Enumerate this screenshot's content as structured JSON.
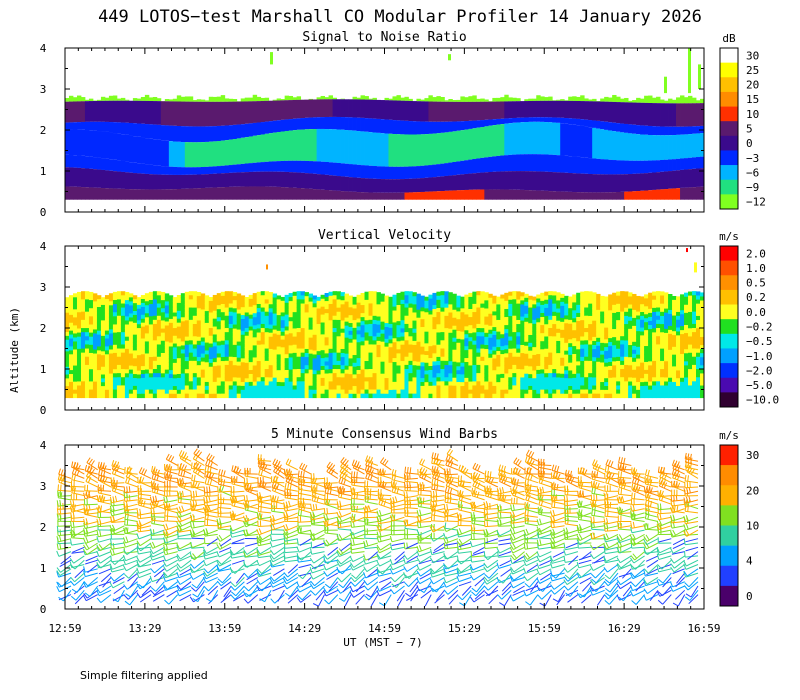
{
  "chart_data": {
    "type": "heatmap",
    "title": "449 LOTOS−test Marshall CO Modular Profiler 14 January 2026",
    "xlabel": "UT  (MST − 7)",
    "ylabel": "Altitude (km)",
    "x_ticks": [
      "12:59",
      "13:29",
      "13:59",
      "14:29",
      "14:59",
      "15:29",
      "15:59",
      "16:29",
      "16:59"
    ],
    "y_ticks": [
      "0",
      "1",
      "2",
      "3",
      "4"
    ],
    "ylim": [
      0,
      4
    ],
    "footnote": "Simple filtering applied",
    "panels": [
      {
        "name": "snr",
        "title": "Signal to Noise Ratio",
        "unit": "dB",
        "colorbar": {
          "labels": [
            "30",
            "25",
            "20",
            "15",
            "10",
            "5",
            "0",
            "−3",
            "−6",
            "−9",
            "−12"
          ],
          "colors": [
            "#ffffff",
            "#ffff00",
            "#ffc000",
            "#ff8c00",
            "#ff3000",
            "#5a1a6e",
            "#3a0a8c",
            "#0028ff",
            "#00b4ff",
            "#20e080",
            "#80ff20"
          ]
        },
        "profile_top_km": 2.8,
        "profile_bottom_km": 0.3,
        "layers": [
          {
            "range_km": [
              2.7,
              2.85
            ],
            "class": "−9 to −12"
          },
          {
            "range_km": [
              2.1,
              2.7
            ],
            "class": "0 to 5"
          },
          {
            "range_km": [
              1.2,
              2.1
            ],
            "class": "−3 to −9"
          },
          {
            "range_km": [
              0.5,
              1.2
            ],
            "class": "0 to 5"
          },
          {
            "range_km": [
              0.3,
              0.5
            ],
            "class": "5 to 15"
          }
        ]
      },
      {
        "name": "vertical-velocity",
        "title": "Vertical Velocity",
        "unit": "m/s",
        "colorbar": {
          "labels": [
            "2.0",
            "1.0",
            "0.5",
            "0.2",
            "0.0",
            "−0.2",
            "−0.5",
            "−1.0",
            "−2.0",
            "−5.0",
            "−10.0"
          ],
          "colors": [
            "#ff0000",
            "#ff5000",
            "#ff9000",
            "#ffc000",
            "#ffff20",
            "#20e020",
            "#00e8e8",
            "#00a0ff",
            "#0030ff",
            "#4a0ab0",
            "#300030"
          ]
        },
        "profile_top_km": 2.9,
        "profile_bottom_km": 0.3,
        "dominant_range_m_s": [
          -0.5,
          0.5
        ]
      },
      {
        "name": "wind-barbs",
        "title": "5 Minute Consensus Wind Barbs",
        "unit": "m/s",
        "colorbar": {
          "labels": [
            "30",
            "20",
            "10",
            "4",
            "0"
          ],
          "colors": [
            "#ff2000",
            "#ff8c00",
            "#ffb000",
            "#80e020",
            "#30d0a0",
            "#00a0ff",
            "#2040ff",
            "#4a006a"
          ]
        },
        "speed_profile_m_s": [
          {
            "alt_km": 0.5,
            "speed": 4
          },
          {
            "alt_km": 1.0,
            "speed": 6
          },
          {
            "alt_km": 1.5,
            "speed": 9
          },
          {
            "alt_km": 2.0,
            "speed": 12
          },
          {
            "alt_km": 2.5,
            "speed": 15
          },
          {
            "alt_km": 3.0,
            "speed": 18
          },
          {
            "alt_km": 3.5,
            "speed": 20
          }
        ]
      }
    ]
  }
}
